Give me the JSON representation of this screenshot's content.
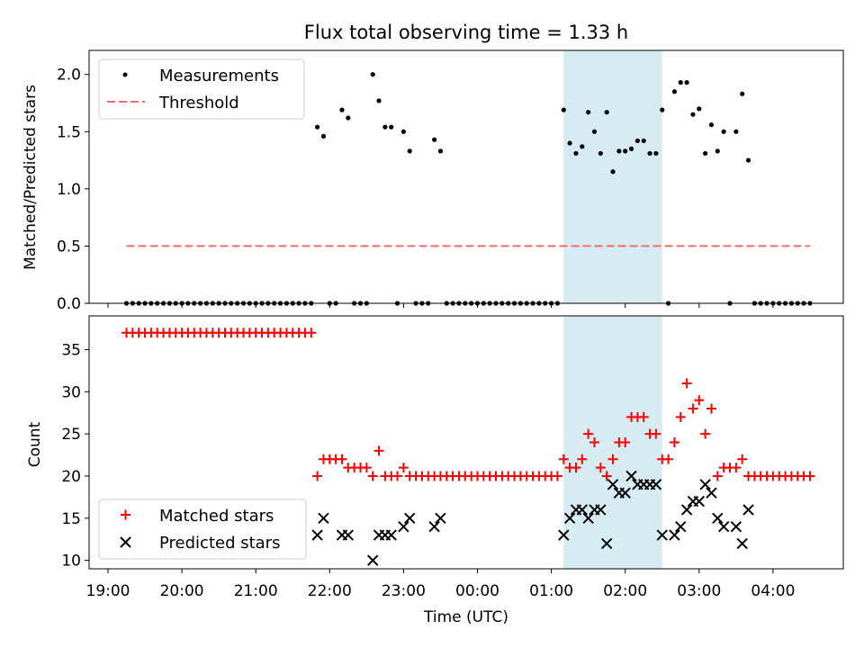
{
  "chart_data": {
    "type": "scatter",
    "title": "Flux total observing time = 1.33 h",
    "xlabel": "Time (UTC)",
    "x_ticks": [
      "19:00",
      "20:00",
      "21:00",
      "22:00",
      "23:00",
      "00:00",
      "01:00",
      "02:00",
      "03:00",
      "04:00"
    ],
    "highlight_span": {
      "start": "01:10",
      "end": "02:30",
      "color": "#add8e6"
    },
    "top": {
      "ylabel": "Matched/Predicted stars",
      "ylim": [
        0,
        2.1
      ],
      "yticks": [
        "0.0",
        "0.5",
        "1.0",
        "1.5",
        "2.0"
      ],
      "legend": "upper-left",
      "threshold": {
        "name": "Threshold",
        "value": 0.5,
        "x_start": "19:15",
        "x_end": "04:30",
        "color": "#ff6b6b"
      },
      "series": [
        {
          "name": "Measurements",
          "color": "#000000",
          "points": [
            [
              "19:15",
              0
            ],
            [
              "19:20",
              0
            ],
            [
              "19:25",
              0
            ],
            [
              "19:30",
              0
            ],
            [
              "19:35",
              0
            ],
            [
              "19:40",
              0
            ],
            [
              "19:45",
              0
            ],
            [
              "19:50",
              0
            ],
            [
              "19:55",
              0
            ],
            [
              "20:00",
              0
            ],
            [
              "20:05",
              0
            ],
            [
              "20:10",
              0
            ],
            [
              "20:15",
              0
            ],
            [
              "20:20",
              0
            ],
            [
              "20:25",
              0
            ],
            [
              "20:30",
              0
            ],
            [
              "20:35",
              0
            ],
            [
              "20:40",
              0
            ],
            [
              "20:45",
              0
            ],
            [
              "20:50",
              0
            ],
            [
              "20:55",
              0
            ],
            [
              "21:00",
              0
            ],
            [
              "21:05",
              0
            ],
            [
              "21:10",
              0
            ],
            [
              "21:15",
              0
            ],
            [
              "21:20",
              0
            ],
            [
              "21:25",
              0
            ],
            [
              "21:30",
              0
            ],
            [
              "21:35",
              0
            ],
            [
              "21:40",
              0
            ],
            [
              "21:45",
              0
            ],
            [
              "21:50",
              1.54
            ],
            [
              "21:55",
              1.46
            ],
            [
              "22:00",
              0
            ],
            [
              "22:05",
              0
            ],
            [
              "22:10",
              1.69
            ],
            [
              "22:15",
              1.62
            ],
            [
              "22:20",
              0
            ],
            [
              "22:25",
              0
            ],
            [
              "22:30",
              0
            ],
            [
              "22:35",
              2.0
            ],
            [
              "22:40",
              1.77
            ],
            [
              "22:45",
              1.54
            ],
            [
              "22:50",
              1.54
            ],
            [
              "22:55",
              0
            ],
            [
              "23:00",
              1.5
            ],
            [
              "23:05",
              1.33
            ],
            [
              "23:10",
              0
            ],
            [
              "23:15",
              0
            ],
            [
              "23:20",
              0
            ],
            [
              "23:25",
              1.43
            ],
            [
              "23:30",
              1.33
            ],
            [
              "23:35",
              0
            ],
            [
              "23:40",
              0
            ],
            [
              "23:45",
              0
            ],
            [
              "23:50",
              0
            ],
            [
              "23:55",
              0
            ],
            [
              "00:00",
              0
            ],
            [
              "00:05",
              0
            ],
            [
              "00:10",
              0
            ],
            [
              "00:15",
              0
            ],
            [
              "00:20",
              0
            ],
            [
              "00:25",
              0
            ],
            [
              "00:30",
              0
            ],
            [
              "00:35",
              0
            ],
            [
              "00:40",
              0
            ],
            [
              "00:45",
              0
            ],
            [
              "00:50",
              0
            ],
            [
              "00:55",
              0
            ],
            [
              "01:00",
              0
            ],
            [
              "01:05",
              0
            ],
            [
              "01:10",
              1.69
            ],
            [
              "01:15",
              1.4
            ],
            [
              "01:20",
              1.31
            ],
            [
              "01:25",
              1.37
            ],
            [
              "01:30",
              1.67
            ],
            [
              "01:35",
              1.5
            ],
            [
              "01:40",
              1.31
            ],
            [
              "01:45",
              1.67
            ],
            [
              "01:50",
              1.15
            ],
            [
              "01:55",
              1.33
            ],
            [
              "02:00",
              1.33
            ],
            [
              "02:05",
              1.35
            ],
            [
              "02:10",
              1.42
            ],
            [
              "02:15",
              1.42
            ],
            [
              "02:20",
              1.31
            ],
            [
              "02:25",
              1.31
            ],
            [
              "02:30",
              1.69
            ],
            [
              "02:35",
              0
            ],
            [
              "02:40",
              1.85
            ],
            [
              "02:45",
              1.93
            ],
            [
              "02:50",
              1.93
            ],
            [
              "02:55",
              1.65
            ],
            [
              "03:00",
              1.7
            ],
            [
              "03:05",
              1.31
            ],
            [
              "03:10",
              1.56
            ],
            [
              "03:15",
              1.33
            ],
            [
              "03:20",
              1.5
            ],
            [
              "03:25",
              0
            ],
            [
              "03:30",
              1.5
            ],
            [
              "03:35",
              1.83
            ],
            [
              "03:40",
              1.25
            ],
            [
              "03:45",
              0
            ],
            [
              "03:50",
              0
            ],
            [
              "03:55",
              0
            ],
            [
              "04:00",
              0
            ],
            [
              "04:05",
              0
            ],
            [
              "04:10",
              0
            ],
            [
              "04:15",
              0
            ],
            [
              "04:20",
              0
            ],
            [
              "04:25",
              0
            ],
            [
              "04:30",
              0
            ]
          ]
        }
      ]
    },
    "bottom": {
      "ylabel": "Count",
      "ylim": [
        9,
        39
      ],
      "yticks": [
        "10",
        "15",
        "20",
        "25",
        "30",
        "35"
      ],
      "legend": "lower-left",
      "series": [
        {
          "name": "Matched stars",
          "color": "#ff0000",
          "marker": "plus",
          "points": [
            [
              "19:15",
              37
            ],
            [
              "19:20",
              37
            ],
            [
              "19:25",
              37
            ],
            [
              "19:30",
              37
            ],
            [
              "19:35",
              37
            ],
            [
              "19:40",
              37
            ],
            [
              "19:45",
              37
            ],
            [
              "19:50",
              37
            ],
            [
              "19:55",
              37
            ],
            [
              "20:00",
              37
            ],
            [
              "20:05",
              37
            ],
            [
              "20:10",
              37
            ],
            [
              "20:15",
              37
            ],
            [
              "20:20",
              37
            ],
            [
              "20:25",
              37
            ],
            [
              "20:30",
              37
            ],
            [
              "20:35",
              37
            ],
            [
              "20:40",
              37
            ],
            [
              "20:45",
              37
            ],
            [
              "20:50",
              37
            ],
            [
              "20:55",
              37
            ],
            [
              "21:00",
              37
            ],
            [
              "21:05",
              37
            ],
            [
              "21:10",
              37
            ],
            [
              "21:15",
              37
            ],
            [
              "21:20",
              37
            ],
            [
              "21:25",
              37
            ],
            [
              "21:30",
              37
            ],
            [
              "21:35",
              37
            ],
            [
              "21:40",
              37
            ],
            [
              "21:45",
              37
            ],
            [
              "21:50",
              20
            ],
            [
              "21:55",
              22
            ],
            [
              "22:00",
              22
            ],
            [
              "22:05",
              22
            ],
            [
              "22:10",
              22
            ],
            [
              "22:15",
              21
            ],
            [
              "22:20",
              21
            ],
            [
              "22:25",
              21
            ],
            [
              "22:30",
              21
            ],
            [
              "22:35",
              20
            ],
            [
              "22:40",
              23
            ],
            [
              "22:45",
              20
            ],
            [
              "22:50",
              20
            ],
            [
              "22:55",
              20
            ],
            [
              "23:00",
              21
            ],
            [
              "23:05",
              20
            ],
            [
              "23:10",
              20
            ],
            [
              "23:15",
              20
            ],
            [
              "23:20",
              20
            ],
            [
              "23:25",
              20
            ],
            [
              "23:30",
              20
            ],
            [
              "23:35",
              20
            ],
            [
              "23:40",
              20
            ],
            [
              "23:45",
              20
            ],
            [
              "23:50",
              20
            ],
            [
              "23:55",
              20
            ],
            [
              "00:00",
              20
            ],
            [
              "00:05",
              20
            ],
            [
              "00:10",
              20
            ],
            [
              "00:15",
              20
            ],
            [
              "00:20",
              20
            ],
            [
              "00:25",
              20
            ],
            [
              "00:30",
              20
            ],
            [
              "00:35",
              20
            ],
            [
              "00:40",
              20
            ],
            [
              "00:45",
              20
            ],
            [
              "00:50",
              20
            ],
            [
              "00:55",
              20
            ],
            [
              "01:00",
              20
            ],
            [
              "01:05",
              20
            ],
            [
              "01:10",
              22
            ],
            [
              "01:15",
              21
            ],
            [
              "01:20",
              21
            ],
            [
              "01:25",
              22
            ],
            [
              "01:30",
              25
            ],
            [
              "01:35",
              24
            ],
            [
              "01:40",
              21
            ],
            [
              "01:45",
              20
            ],
            [
              "01:50",
              22
            ],
            [
              "01:55",
              24
            ],
            [
              "02:00",
              24
            ],
            [
              "02:05",
              27
            ],
            [
              "02:10",
              27
            ],
            [
              "02:15",
              27
            ],
            [
              "02:20",
              25
            ],
            [
              "02:25",
              25
            ],
            [
              "02:30",
              22
            ],
            [
              "02:35",
              22
            ],
            [
              "02:40",
              24
            ],
            [
              "02:45",
              27
            ],
            [
              "02:50",
              31
            ],
            [
              "02:55",
              28
            ],
            [
              "03:00",
              29
            ],
            [
              "03:05",
              25
            ],
            [
              "03:10",
              28
            ],
            [
              "03:15",
              20
            ],
            [
              "03:20",
              21
            ],
            [
              "03:25",
              21
            ],
            [
              "03:30",
              21
            ],
            [
              "03:35",
              22
            ],
            [
              "03:40",
              20
            ],
            [
              "03:45",
              20
            ],
            [
              "03:50",
              20
            ],
            [
              "03:55",
              20
            ],
            [
              "04:00",
              20
            ],
            [
              "04:05",
              20
            ],
            [
              "04:10",
              20
            ],
            [
              "04:15",
              20
            ],
            [
              "04:20",
              20
            ],
            [
              "04:25",
              20
            ],
            [
              "04:30",
              20
            ]
          ]
        },
        {
          "name": "Predicted stars",
          "color": "#000000",
          "marker": "x",
          "points": [
            [
              "21:50",
              13
            ],
            [
              "21:55",
              15
            ],
            [
              "22:10",
              13
            ],
            [
              "22:15",
              13
            ],
            [
              "22:35",
              10
            ],
            [
              "22:40",
              13
            ],
            [
              "22:45",
              13
            ],
            [
              "22:50",
              13
            ],
            [
              "23:00",
              14
            ],
            [
              "23:05",
              15
            ],
            [
              "23:25",
              14
            ],
            [
              "23:30",
              15
            ],
            [
              "01:10",
              13
            ],
            [
              "01:15",
              15
            ],
            [
              "01:20",
              16
            ],
            [
              "01:25",
              16
            ],
            [
              "01:30",
              15
            ],
            [
              "01:35",
              16
            ],
            [
              "01:40",
              16
            ],
            [
              "01:45",
              12
            ],
            [
              "01:50",
              19
            ],
            [
              "01:55",
              18
            ],
            [
              "02:00",
              18
            ],
            [
              "02:05",
              20
            ],
            [
              "02:10",
              19
            ],
            [
              "02:15",
              19
            ],
            [
              "02:20",
              19
            ],
            [
              "02:25",
              19
            ],
            [
              "02:30",
              13
            ],
            [
              "02:40",
              13
            ],
            [
              "02:45",
              14
            ],
            [
              "02:50",
              16
            ],
            [
              "02:55",
              17
            ],
            [
              "03:00",
              17
            ],
            [
              "03:05",
              19
            ],
            [
              "03:10",
              18
            ],
            [
              "03:15",
              15
            ],
            [
              "03:20",
              14
            ],
            [
              "03:30",
              14
            ],
            [
              "03:35",
              12
            ],
            [
              "03:40",
              16
            ]
          ]
        }
      ]
    }
  }
}
